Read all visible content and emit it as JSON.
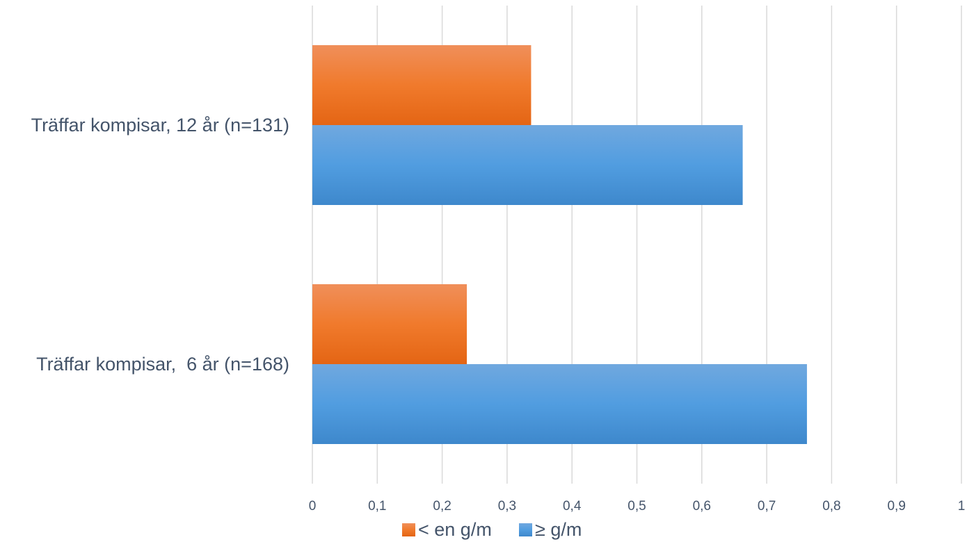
{
  "chart_data": {
    "type": "bar",
    "orientation": "horizontal",
    "categories": [
      "Träffar kompisar, 12 år (n=131)",
      "Träffar kompisar,  6 år (n=168)"
    ],
    "series": [
      {
        "name": "< en g/m",
        "values": [
          0.337,
          0.238
        ],
        "color": "#ed7d31"
      },
      {
        "name": "≥ g/m",
        "values": [
          0.663,
          0.762
        ],
        "color": "#5b9bd5"
      }
    ],
    "xlim": [
      0,
      1
    ],
    "xticks": [
      "0",
      "0,1",
      "0,2",
      "0,3",
      "0,4",
      "0,5",
      "0,6",
      "0,7",
      "0,8",
      "0,9",
      "1"
    ],
    "grid": true,
    "legend": "bottom"
  }
}
